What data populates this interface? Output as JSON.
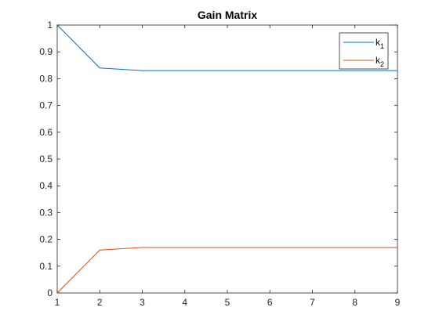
{
  "chart_data": {
    "type": "line",
    "title": "Gain Matrix",
    "xlabel": "",
    "ylabel": "",
    "xlim": [
      1,
      9
    ],
    "ylim": [
      0,
      1
    ],
    "xticks": [
      "1",
      "2",
      "3",
      "4",
      "5",
      "6",
      "7",
      "8",
      "9"
    ],
    "yticks": [
      "0",
      "0.1",
      "0.2",
      "0.3",
      "0.4",
      "0.5",
      "0.6",
      "0.7",
      "0.8",
      "0.9",
      "1"
    ],
    "grid": false,
    "legend_position": "top-right",
    "x": [
      1,
      2,
      3,
      4,
      5,
      6,
      7,
      8,
      9
    ],
    "series": [
      {
        "name": "k1",
        "label_main": "k",
        "label_sub": "1",
        "color": "#0072BD",
        "values": [
          1.0,
          0.84,
          0.83,
          0.83,
          0.83,
          0.83,
          0.83,
          0.83,
          0.83
        ]
      },
      {
        "name": "k2",
        "label_main": "k",
        "label_sub": "2",
        "color": "#D95319",
        "values": [
          0.0,
          0.16,
          0.17,
          0.17,
          0.17,
          0.17,
          0.17,
          0.17,
          0.17
        ]
      }
    ]
  }
}
